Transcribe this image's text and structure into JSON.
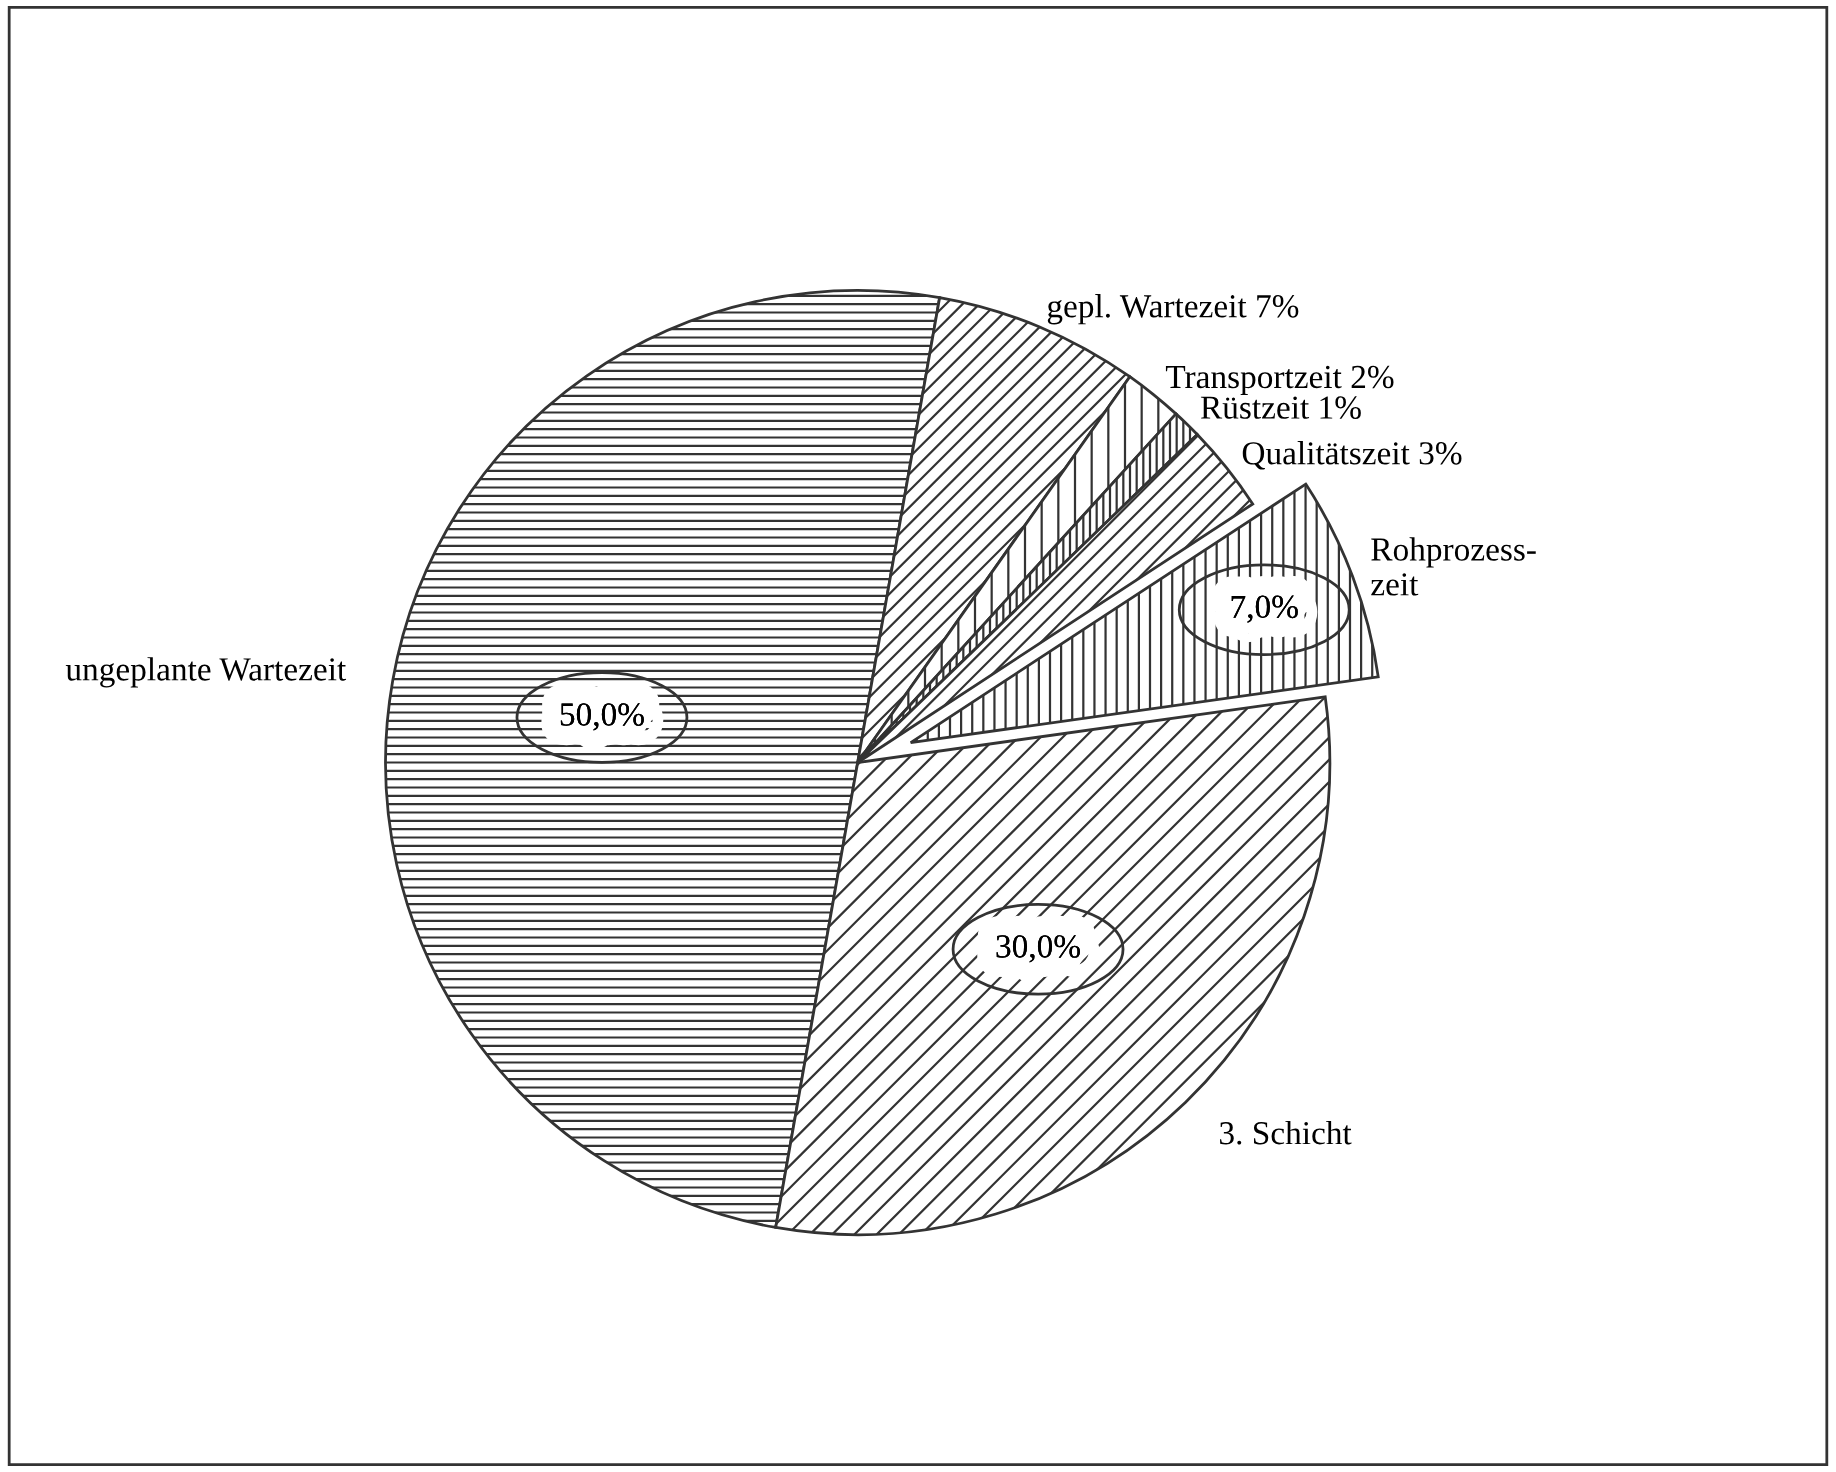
{
  "chart_data": {
    "type": "pie",
    "categories": [
      "ungeplante Wartezeit",
      "gepl. Wartezeit 7%",
      "Transportzeit 2%",
      "Rüstzeit 1%",
      "Qualitätszeit 3%",
      "Rohprozess-\nzeit",
      "3. Schicht"
    ],
    "values": [
      50,
      7,
      2,
      1,
      3,
      7,
      30
    ],
    "value_labels": [
      "50,0%",
      null,
      null,
      null,
      null,
      "7,0%",
      "30,0%"
    ],
    "colors": [
      "#ffffff",
      "#ffffff",
      "#ffffff",
      "#ffffff",
      "#ffffff",
      "#ffffff",
      "#ffffff"
    ]
  }
}
